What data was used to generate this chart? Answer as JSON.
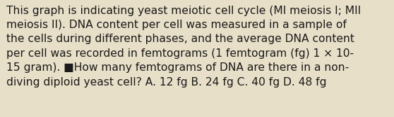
{
  "background_color": "#e8dfc8",
  "text_color": "#1a1a1a",
  "line1": "This graph is indicating yeast meiotic cell cycle (MI meiosis I; MII",
  "line2": "meiosis II). DNA content per cell was measured in a sample of",
  "line3": "the cells during different phases, and the average DNA content",
  "line4": "per cell was recorded in femtograms (1 femtogram (fg) 1 × 10-",
  "line5": "15 gram). ■How many femtograms of DNA are there in a non-",
  "line6": "diving diploid yeast cell? A. 12 fg B. 24 fg C. 40 fg D. 48 fg",
  "font_size": 11.2,
  "figsize": [
    5.58,
    1.67
  ],
  "dpi": 100
}
